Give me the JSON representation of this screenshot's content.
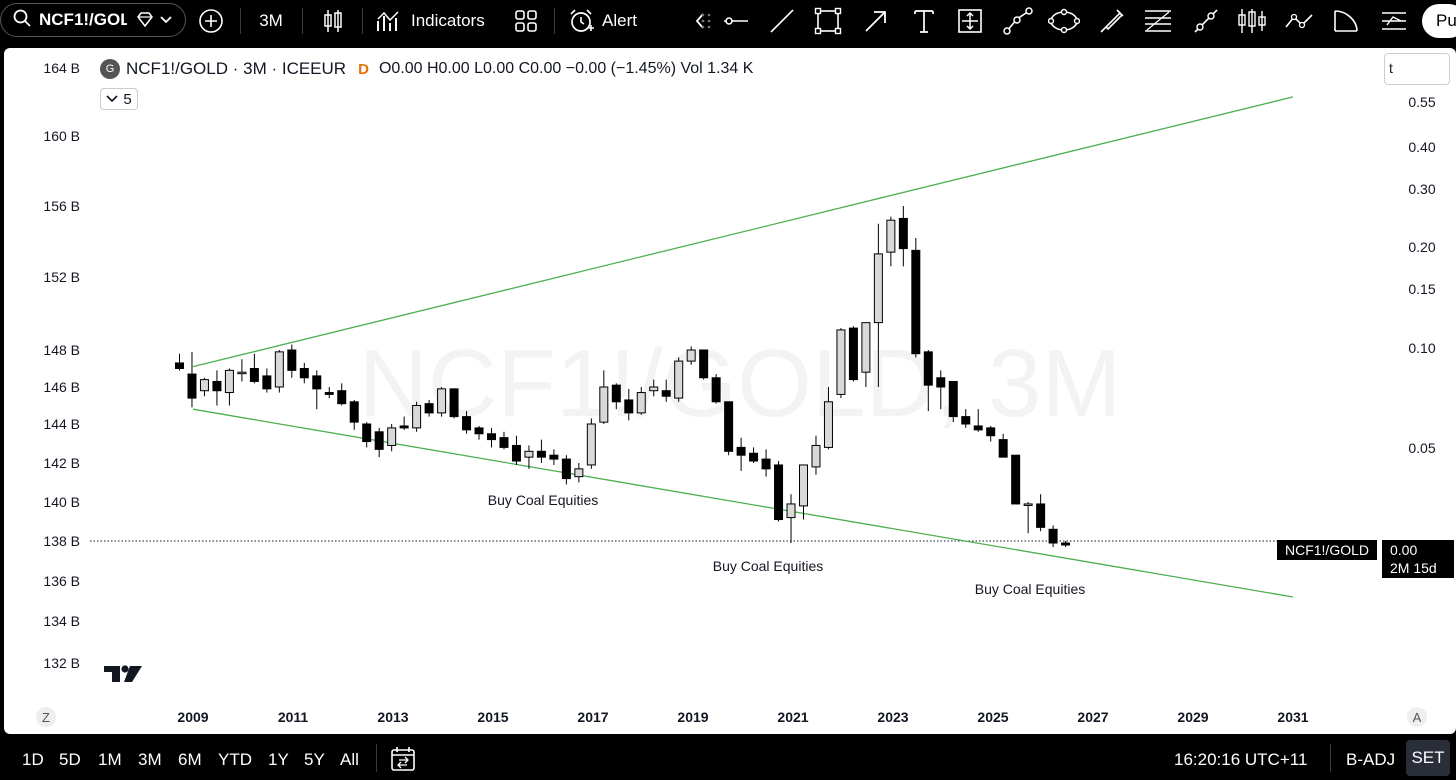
{
  "topbar": {
    "symbol": "NCF1!/GOLD",
    "interval": "3M",
    "indicators_label": "Indicators",
    "alert_label": "Alert",
    "publish_label": "Pu"
  },
  "legend": {
    "logo_letter": "G",
    "title": "NCF1!/GOLD · 3M · ICEEUR",
    "badge": "D",
    "ohlc": "O0.00  H0.00  L0.00  C0.00  −0.00 (−1.45%)  Vol 1.34 K",
    "collapse_count": "5"
  },
  "scale_input": "t",
  "price_label": {
    "symbol": "NCF1!/GOLD",
    "value": "0.00",
    "countdown": "2M 15d"
  },
  "watermark": "NCF1!/GOLD, 3M",
  "left_axis_labels": [
    "164 B",
    "160 B",
    "156 B",
    "152 B",
    "148 B",
    "146 B",
    "144 B",
    "142 B",
    "140 B",
    "138 B",
    "136 B",
    "134 B",
    "132 B"
  ],
  "right_axis_labels": [
    "0.55",
    "0.40",
    "0.30",
    "0.20",
    "0.15",
    "0.10",
    "0.05"
  ],
  "x_axis_labels": [
    "2009",
    "2011",
    "2013",
    "2015",
    "2017",
    "2019",
    "2021",
    "2023",
    "2025",
    "2027",
    "2029",
    "2031"
  ],
  "annotations": [
    "Buy Coal Equities",
    "Buy Coal Equities",
    "Buy Coal Equities"
  ],
  "axis_corner": {
    "left": "Z",
    "right": "A"
  },
  "bottombar": {
    "ranges": [
      "1D",
      "5D",
      "1M",
      "3M",
      "6M",
      "YTD",
      "1Y",
      "5Y",
      "All"
    ],
    "clock": "16:20:16 UTC+11",
    "adjust": "B-ADJ",
    "session": "SET"
  },
  "colors": {
    "trendline": "#4caf50",
    "candle_up": "#d9d9d9",
    "candle_down": "#000000",
    "background": "#ffffff",
    "toolbar": "#000000"
  },
  "chart_data": {
    "type": "candlestick",
    "interval": "3M",
    "series_note": "quarterly candles, values on left axis (B)",
    "candles": [
      {
        "o": 147.3,
        "h": 147.8,
        "l": 146.9,
        "c": 147.0
      },
      {
        "o": 146.7,
        "h": 147.9,
        "l": 144.9,
        "c": 145.4
      },
      {
        "o": 145.8,
        "h": 146.5,
        "l": 145.5,
        "c": 146.4
      },
      {
        "o": 146.3,
        "h": 146.9,
        "l": 145.0,
        "c": 145.8
      },
      {
        "o": 145.7,
        "h": 147.0,
        "l": 145.0,
        "c": 146.9
      },
      {
        "o": 146.8,
        "h": 147.5,
        "l": 146.3,
        "c": 146.8
      },
      {
        "o": 147.0,
        "h": 147.8,
        "l": 146.2,
        "c": 146.3
      },
      {
        "o": 146.6,
        "h": 147.0,
        "l": 145.7,
        "c": 145.9
      },
      {
        "o": 146.0,
        "h": 148.0,
        "l": 145.7,
        "c": 147.9
      },
      {
        "o": 148.0,
        "h": 148.3,
        "l": 146.5,
        "c": 146.9
      },
      {
        "o": 147.0,
        "h": 147.3,
        "l": 146.2,
        "c": 146.5
      },
      {
        "o": 146.6,
        "h": 146.9,
        "l": 144.8,
        "c": 145.9
      },
      {
        "o": 145.7,
        "h": 146.0,
        "l": 145.4,
        "c": 145.6
      },
      {
        "o": 145.8,
        "h": 146.2,
        "l": 145.0,
        "c": 145.1
      },
      {
        "o": 145.2,
        "h": 145.3,
        "l": 143.7,
        "c": 144.1
      },
      {
        "o": 144.0,
        "h": 144.1,
        "l": 142.8,
        "c": 143.1
      },
      {
        "o": 143.6,
        "h": 143.8,
        "l": 142.3,
        "c": 142.7
      },
      {
        "o": 142.9,
        "h": 144.0,
        "l": 142.6,
        "c": 143.8
      },
      {
        "o": 143.9,
        "h": 144.4,
        "l": 143.7,
        "c": 143.8
      },
      {
        "o": 143.8,
        "h": 145.2,
        "l": 143.6,
        "c": 145.0
      },
      {
        "o": 145.1,
        "h": 145.3,
        "l": 144.4,
        "c": 144.6
      },
      {
        "o": 144.6,
        "h": 146.0,
        "l": 144.4,
        "c": 145.9
      },
      {
        "o": 145.9,
        "h": 145.9,
        "l": 144.3,
        "c": 144.4
      },
      {
        "o": 144.4,
        "h": 144.7,
        "l": 143.5,
        "c": 143.7
      },
      {
        "o": 143.8,
        "h": 143.9,
        "l": 143.2,
        "c": 143.5
      },
      {
        "o": 143.5,
        "h": 143.8,
        "l": 142.8,
        "c": 143.2
      },
      {
        "o": 143.3,
        "h": 143.6,
        "l": 142.7,
        "c": 142.8
      },
      {
        "o": 142.9,
        "h": 143.4,
        "l": 141.9,
        "c": 142.1
      },
      {
        "o": 142.3,
        "h": 142.9,
        "l": 141.7,
        "c": 142.6
      },
      {
        "o": 142.6,
        "h": 143.2,
        "l": 142.0,
        "c": 142.3
      },
      {
        "o": 142.4,
        "h": 142.7,
        "l": 141.9,
        "c": 142.2
      },
      {
        "o": 142.2,
        "h": 142.4,
        "l": 140.9,
        "c": 141.2
      },
      {
        "o": 141.3,
        "h": 142.0,
        "l": 141.0,
        "c": 141.7
      },
      {
        "o": 141.9,
        "h": 144.3,
        "l": 141.7,
        "c": 144.0
      },
      {
        "o": 144.1,
        "h": 146.9,
        "l": 144.0,
        "c": 146.0
      },
      {
        "o": 146.1,
        "h": 146.2,
        "l": 144.8,
        "c": 145.2
      },
      {
        "o": 145.3,
        "h": 145.9,
        "l": 144.2,
        "c": 144.6
      },
      {
        "o": 144.6,
        "h": 146.0,
        "l": 144.5,
        "c": 145.7
      },
      {
        "o": 145.8,
        "h": 146.4,
        "l": 145.5,
        "c": 146.0
      },
      {
        "o": 145.8,
        "h": 146.4,
        "l": 145.2,
        "c": 145.5
      },
      {
        "o": 145.4,
        "h": 147.6,
        "l": 145.2,
        "c": 147.4
      },
      {
        "o": 147.4,
        "h": 148.2,
        "l": 147.2,
        "c": 148.0
      },
      {
        "o": 148.0,
        "h": 148.0,
        "l": 146.4,
        "c": 146.5
      },
      {
        "o": 146.5,
        "h": 146.7,
        "l": 145.1,
        "c": 145.2
      },
      {
        "o": 145.2,
        "h": 145.2,
        "l": 142.4,
        "c": 142.6
      },
      {
        "o": 142.8,
        "h": 143.3,
        "l": 141.6,
        "c": 142.4
      },
      {
        "o": 142.5,
        "h": 142.8,
        "l": 142.0,
        "c": 142.1
      },
      {
        "o": 142.2,
        "h": 142.7,
        "l": 141.3,
        "c": 141.7
      },
      {
        "o": 141.9,
        "h": 142.1,
        "l": 139.0,
        "c": 139.1
      },
      {
        "o": 139.2,
        "h": 140.4,
        "l": 137.9,
        "c": 139.9
      },
      {
        "o": 139.8,
        "h": 141.9,
        "l": 139.1,
        "c": 141.9
      },
      {
        "o": 141.8,
        "h": 143.4,
        "l": 141.4,
        "c": 142.9
      },
      {
        "o": 142.8,
        "h": 146.0,
        "l": 142.7,
        "c": 145.2
      },
      {
        "o": 145.6,
        "h": 149.2,
        "l": 145.4,
        "c": 149.1
      },
      {
        "o": 149.2,
        "h": 149.3,
        "l": 146.3,
        "c": 146.4
      },
      {
        "o": 146.8,
        "h": 149.5,
        "l": 146.0,
        "c": 149.5
      },
      {
        "o": 149.5,
        "h": 155.0,
        "l": 146.0,
        "c": 153.3
      },
      {
        "o": 153.4,
        "h": 155.4,
        "l": 152.6,
        "c": 155.2
      },
      {
        "o": 155.3,
        "h": 156.0,
        "l": 152.6,
        "c": 153.6
      },
      {
        "o": 153.5,
        "h": 154.2,
        "l": 147.6,
        "c": 147.8
      },
      {
        "o": 147.9,
        "h": 148.0,
        "l": 144.7,
        "c": 146.1
      },
      {
        "o": 146.5,
        "h": 146.9,
        "l": 144.8,
        "c": 146.0
      },
      {
        "o": 146.3,
        "h": 146.3,
        "l": 144.1,
        "c": 144.4
      },
      {
        "o": 144.4,
        "h": 144.8,
        "l": 143.8,
        "c": 144.0
      },
      {
        "o": 143.9,
        "h": 144.8,
        "l": 143.6,
        "c": 143.7
      },
      {
        "o": 143.8,
        "h": 143.9,
        "l": 143.1,
        "c": 143.4
      },
      {
        "o": 143.2,
        "h": 143.5,
        "l": 142.3,
        "c": 142.3
      },
      {
        "o": 142.4,
        "h": 142.4,
        "l": 139.9,
        "c": 139.9
      },
      {
        "o": 139.9,
        "h": 140.0,
        "l": 138.4,
        "c": 139.9
      },
      {
        "o": 139.9,
        "h": 140.4,
        "l": 138.5,
        "c": 138.7
      },
      {
        "o": 138.6,
        "h": 138.8,
        "l": 137.7,
        "c": 137.9
      },
      {
        "o": 137.9,
        "h": 138.0,
        "l": 137.7,
        "c": 137.8
      }
    ],
    "trendlines": [
      {
        "from": {
          "x": "2009",
          "y": 147.1
        },
        "to": {
          "x": "2031",
          "y": 162.3
        }
      },
      {
        "from": {
          "x": "2009",
          "y": 144.8
        },
        "to": {
          "x": "2031",
          "y": 135.2
        }
      }
    ],
    "last_value_line": 138.0,
    "left_axis_unit": "B",
    "xlim": [
      "2009",
      "2031"
    ]
  }
}
